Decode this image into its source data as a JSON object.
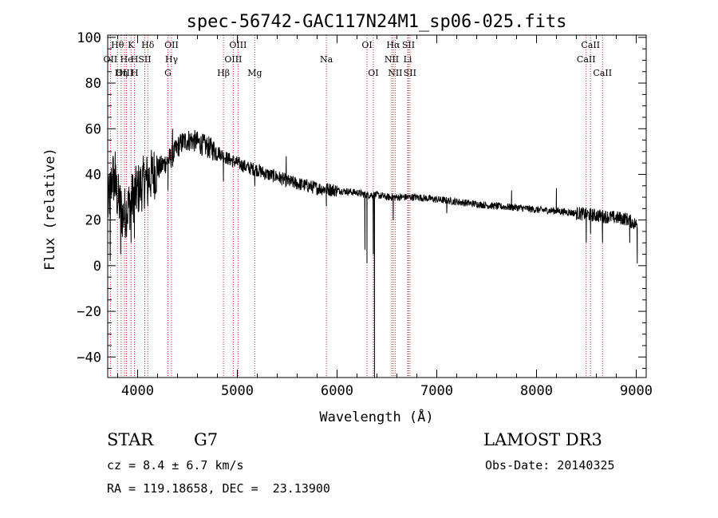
{
  "chart_data": {
    "type": "line",
    "title": "spec-56742-GAC117N24M1_sp06-025.fits",
    "xlabel": "Wavelength (Å)",
    "ylabel": "Flux (relative)",
    "xlim": [
      3700,
      9100
    ],
    "ylim": [
      -49,
      101
    ],
    "xticks": [
      4000,
      5000,
      6000,
      7000,
      8000,
      9000
    ],
    "yticks": [
      -40,
      -20,
      0,
      20,
      40,
      60,
      80,
      100
    ],
    "ytick_labels": [
      "−40",
      "−20",
      "0",
      "20",
      "40",
      "60",
      "80",
      "100"
    ],
    "spectral_lines": [
      {
        "label": "Hθ",
        "wavelength": 3798,
        "row": 1
      },
      {
        "label": "K",
        "wavelength": 3934,
        "row": 1
      },
      {
        "label": "Hδ",
        "wavelength": 4102,
        "row": 1
      },
      {
        "label": "OII",
        "wavelength": 4340,
        "row": 1
      },
      {
        "label": "OIII",
        "wavelength": 5007,
        "row": 1
      },
      {
        "label": "OI",
        "wavelength": 6300,
        "row": 1
      },
      {
        "label": "Hα",
        "wavelength": 6563,
        "row": 1
      },
      {
        "label": "SII",
        "wavelength": 6716,
        "row": 1
      },
      {
        "label": "CaII",
        "wavelength": 8542,
        "row": 1
      },
      {
        "label": "OII",
        "wavelength": 3727,
        "row": 2
      },
      {
        "label": "He",
        "wavelength": 3889,
        "row": 2
      },
      {
        "label": "H",
        "wavelength": 3968,
        "row": 2
      },
      {
        "label": "SII",
        "wavelength": 4072,
        "row": 2
      },
      {
        "label": "Hγ",
        "wavelength": 4340,
        "row": 2
      },
      {
        "label": "OIII",
        "wavelength": 4959,
        "row": 2
      },
      {
        "label": "Na",
        "wavelength": 5893,
        "row": 2
      },
      {
        "label": "NII",
        "wavelength": 6548,
        "row": 2
      },
      {
        "label": "Li",
        "wavelength": 6708,
        "row": 2
      },
      {
        "label": "CaII",
        "wavelength": 8498,
        "row": 2
      },
      {
        "label": "OIII",
        "wavelength": 3869,
        "row": 3
      },
      {
        "label": "Hη",
        "wavelength": 3835,
        "row": 3
      },
      {
        "label": "H",
        "wavelength": 3970,
        "row": 3
      },
      {
        "label": "G",
        "wavelength": 4304,
        "row": 3
      },
      {
        "label": "Hβ",
        "wavelength": 4861,
        "row": 3
      },
      {
        "label": "Mg",
        "wavelength": 5175,
        "row": 3
      },
      {
        "label": "OI",
        "wavelength": 6363,
        "row": 3
      },
      {
        "label": "NII",
        "wavelength": 6583,
        "row": 3
      },
      {
        "label": "SII",
        "wavelength": 6731,
        "row": 3
      },
      {
        "label": "CaII",
        "wavelength": 8662,
        "row": 3
      }
    ],
    "spectrum_anchors": {
      "wavelength": [
        3700,
        3750,
        3800,
        3850,
        3900,
        3950,
        4000,
        4050,
        4100,
        4150,
        4200,
        4250,
        4300,
        4350,
        4400,
        4450,
        4500,
        4550,
        4600,
        4700,
        4800,
        4900,
        5000,
        5100,
        5200,
        5300,
        5400,
        5500,
        5600,
        5800,
        6000,
        6200,
        6300,
        6400,
        6500,
        6600,
        6700,
        6800,
        7000,
        7200,
        7400,
        7600,
        7800,
        8000,
        8200,
        8400,
        8500,
        8600,
        8700,
        8800,
        8900,
        9000
      ],
      "flux": [
        25,
        40,
        30,
        22,
        25,
        30,
        33,
        36,
        38,
        40,
        42,
        44,
        46,
        48,
        52,
        54,
        55,
        55,
        54,
        52,
        50,
        47,
        45,
        43,
        42,
        40,
        39,
        37,
        36,
        34,
        33,
        32,
        31,
        31,
        30,
        30,
        30,
        30,
        29,
        28,
        27,
        26,
        25.5,
        24.5,
        24,
        23,
        22.5,
        22,
        21.5,
        21,
        20.5,
        18
      ]
    },
    "spectrum_features": [
      {
        "wavelength": 3725,
        "flux": 2
      },
      {
        "wavelength": 3775,
        "flux": 50
      },
      {
        "wavelength": 3830,
        "flux": 5
      },
      {
        "wavelength": 3934,
        "flux": 10
      },
      {
        "wavelength": 3968,
        "flux": 12
      },
      {
        "wavelength": 4102,
        "flux": 26
      },
      {
        "wavelength": 4304,
        "flux": 33
      },
      {
        "wavelength": 4350,
        "flux": 60
      },
      {
        "wavelength": 4861,
        "flux": 37
      },
      {
        "wavelength": 5175,
        "flux": 35
      },
      {
        "wavelength": 5490,
        "flux": 48
      },
      {
        "wavelength": 5893,
        "flux": 26
      },
      {
        "wavelength": 6280,
        "flux": 7
      },
      {
        "wavelength": 6300,
        "flux": 1
      },
      {
        "wavelength": 6363,
        "flux": 5
      },
      {
        "wavelength": 6375,
        "flux": -49
      },
      {
        "wavelength": 6385,
        "flux": 32
      },
      {
        "wavelength": 6563,
        "flux": 20
      },
      {
        "wavelength": 7100,
        "flux": 23
      },
      {
        "wavelength": 7750,
        "flux": 33
      },
      {
        "wavelength": 8200,
        "flux": 34
      },
      {
        "wavelength": 8498,
        "flux": 10
      },
      {
        "wavelength": 8542,
        "flux": 14
      },
      {
        "wavelength": 8662,
        "flux": 10
      },
      {
        "wavelength": 8935,
        "flux": 10
      },
      {
        "wavelength": 8985,
        "flux": 17
      },
      {
        "wavelength": 9010,
        "flux": 1
      }
    ]
  },
  "info": {
    "object_class": "STAR",
    "subclass": "G7",
    "survey": "LAMOST DR3",
    "cz": "cz = 8.4 ± 6.7 km/s",
    "obs_date": "Obs-Date: 20140325",
    "coords": "RA = 119.18658, DEC =  23.13900"
  },
  "colors": {
    "axis": "#000000",
    "spectrum": "#000000",
    "line_marker": "#cc2222",
    "background": "#ffffff"
  }
}
